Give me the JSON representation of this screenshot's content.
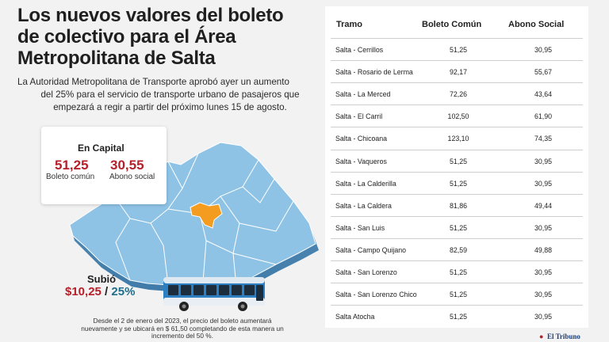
{
  "headline": {
    "lines": [
      "Los nuevos valores del boleto",
      "de colectivo para el Área",
      "Metropolitana de Salta"
    ]
  },
  "lead": {
    "lines": [
      "La Autoridad Metropolitana de Transporte aprobó ayer un aumento",
      "del 25% para el servicio de transporte urbano de pasajeros que",
      "empezará a regir a partir del próximo lunes 15 de agosto."
    ]
  },
  "capital": {
    "label": "En Capital",
    "boleto_value": "51,25",
    "boleto_label": "Boleto común",
    "abono_value": "30,55",
    "abono_label": "Abono social"
  },
  "increase": {
    "label": "Subió",
    "amount": "$10,25",
    "separator": " / ",
    "percent": "25%"
  },
  "footnote": {
    "lines": [
      "Desde el 2 de enero del 2023, el precio del boleto aumentará",
      "nuevamente y se ubicará en $ 61,50 completando de esta manera un",
      "incremento del 50 %."
    ]
  },
  "table": {
    "headers": [
      "Tramo",
      "Boleto Común",
      "Abono Social"
    ],
    "rows": [
      {
        "tramo": "Salta - Cerrillos",
        "boleto": "51,25",
        "abono": "30,95"
      },
      {
        "tramo": "Salta - Rosario de Lerma",
        "boleto": "92,17",
        "abono": "55,67"
      },
      {
        "tramo": "Salta - La Merced",
        "boleto": "72,26",
        "abono": "43,64"
      },
      {
        "tramo": "Salta - El Carril",
        "boleto": "102,50",
        "abono": "61,90"
      },
      {
        "tramo": "Salta - Chicoana",
        "boleto": "123,10",
        "abono": "74,35"
      },
      {
        "tramo": "Salta - Vaqueros",
        "boleto": "51,25",
        "abono": "30,95"
      },
      {
        "tramo": "Salta - La Calderilla",
        "boleto": "51,25",
        "abono": "30,95"
      },
      {
        "tramo": "Salta - La Caldera",
        "boleto": "81,86",
        "abono": "49,44"
      },
      {
        "tramo": "Salta - San Luis",
        "boleto": "51,25",
        "abono": "30,95"
      },
      {
        "tramo": "Salta - Campo Quijano",
        "boleto": "82,59",
        "abono": "49,88"
      },
      {
        "tramo": "Salta - San Lorenzo",
        "boleto": "51,25",
        "abono": "30,95"
      },
      {
        "tramo": "Salta - San Lorenzo Chico",
        "boleto": "51,25",
        "abono": "30,95"
      },
      {
        "tramo": "Salta Atocha",
        "boleto": "51,25",
        "abono": "30,95"
      }
    ]
  },
  "brand": {
    "name": "El Tribuno"
  },
  "colors": {
    "accent_red": "#b5202a",
    "accent_teal": "#1e6f8c",
    "map_blue": "#8fc3e6",
    "map_highlight": "#f39c1f"
  },
  "icons": {
    "map": "salta-map-illustration",
    "bus": "bus-illustration"
  }
}
